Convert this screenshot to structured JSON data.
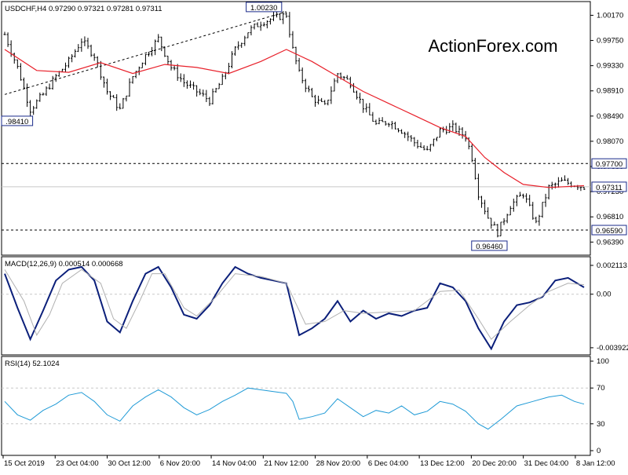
{
  "symbol_header": "USDCHF,H4  0.97290 0.97321 0.97281 0.97311",
  "watermark": "ActionForex.com",
  "colors": {
    "candle": "#000000",
    "ma": "#e8202a",
    "macd": "#0b1f7a",
    "signal": "#b0b0b0",
    "rsi": "#1f9ad6",
    "grid": "#c8c8c8"
  },
  "chart_data": [
    {
      "type": "candlestick",
      "title": "USDCHF,H4",
      "ohlc_last": [
        0.9729,
        0.97321,
        0.97281,
        0.97311
      ],
      "ylim": [
        0.9625,
        1.0032
      ],
      "y_ticks": [
        "1.00170",
        "0.99750",
        "0.99330",
        "0.98910",
        "0.98490",
        "0.98070",
        "0.97650",
        "0.97230",
        "0.96810",
        "0.96390"
      ],
      "y_tick_values": [
        1.0017,
        0.9975,
        0.9933,
        0.9891,
        0.9849,
        0.9807,
        0.9765,
        0.9723,
        0.9681,
        0.9639
      ],
      "x_categories": [
        "15 Oct 2019",
        "23 Oct 04:00",
        "30 Oct 12:00",
        "6 Nov 20:00",
        "14 Nov 04:00",
        "21 Nov 12:00",
        "28 Nov 20:00",
        "6 Dec 04:00",
        "13 Dec 12:00",
        "20 Dec 20:00",
        "31 Dec 04:00",
        "8 Jan 12:00"
      ],
      "close_path": [
        [
          0,
          0.9985
        ],
        [
          4,
          0.993
        ],
        [
          8,
          0.986
        ],
        [
          12,
          0.9885
        ],
        [
          16,
          0.9915
        ],
        [
          20,
          0.994
        ],
        [
          24,
          0.9975
        ],
        [
          28,
          0.995
        ],
        [
          32,
          0.989
        ],
        [
          36,
          0.986
        ],
        [
          40,
          0.9915
        ],
        [
          44,
          0.995
        ],
        [
          48,
          0.9978
        ],
        [
          52,
          0.993
        ],
        [
          56,
          0.9905
        ],
        [
          60,
          0.989
        ],
        [
          64,
          0.9875
        ],
        [
          68,
          0.991
        ],
        [
          72,
          0.996
        ],
        [
          76,
          0.999
        ],
        [
          80,
          1.0005
        ],
        [
          84,
          1.0012
        ],
        [
          88,
          1.0018
        ],
        [
          90,
          0.996
        ],
        [
          92,
          0.992
        ],
        [
          96,
          0.988
        ],
        [
          100,
          0.9865
        ],
        [
          104,
          0.992
        ],
        [
          108,
          0.9905
        ],
        [
          112,
          0.9865
        ],
        [
          116,
          0.9835
        ],
        [
          120,
          0.984
        ],
        [
          124,
          0.9825
        ],
        [
          128,
          0.9805
        ],
        [
          132,
          0.979
        ],
        [
          136,
          0.9825
        ],
        [
          140,
          0.983
        ],
        [
          144,
          0.9815
        ],
        [
          146,
          0.978
        ],
        [
          148,
          0.972
        ],
        [
          151,
          0.968
        ],
        [
          154,
          0.9655
        ],
        [
          158,
          0.97
        ],
        [
          162,
          0.972
        ],
        [
          166,
          0.967
        ],
        [
          170,
          0.973
        ],
        [
          174,
          0.974
        ],
        [
          178,
          0.9735
        ],
        [
          181,
          0.9731
        ]
      ],
      "ma_path": [
        [
          0,
          0.996
        ],
        [
          10,
          0.9925
        ],
        [
          20,
          0.9922
        ],
        [
          30,
          0.9938
        ],
        [
          40,
          0.992
        ],
        [
          50,
          0.9935
        ],
        [
          60,
          0.993
        ],
        [
          70,
          0.992
        ],
        [
          80,
          0.994
        ],
        [
          88,
          0.996
        ],
        [
          96,
          0.994
        ],
        [
          104,
          0.9915
        ],
        [
          112,
          0.989
        ],
        [
          120,
          0.987
        ],
        [
          128,
          0.985
        ],
        [
          136,
          0.983
        ],
        [
          144,
          0.9815
        ],
        [
          150,
          0.978
        ],
        [
          156,
          0.9755
        ],
        [
          162,
          0.9735
        ],
        [
          170,
          0.973
        ],
        [
          181,
          0.9733
        ]
      ],
      "levels": [
        {
          "label": "0.97700",
          "value": 0.977,
          "style": "dashed"
        },
        {
          "label": "0.96590",
          "value": 0.9659,
          "style": "dashed"
        },
        {
          "label": "0.97311",
          "value": 0.97311,
          "style": "solid"
        }
      ],
      "annotations": [
        {
          "label": "1.00230",
          "x": 88,
          "y": 1.0023
        },
        {
          "label": ".98410",
          "x": 6,
          "y": 0.9841
        },
        {
          "label": "0.96460",
          "x": 155,
          "y": 0.9646
        }
      ],
      "trendline": [
        [
          0,
          0.9885
        ],
        [
          88,
          1.0023
        ]
      ]
    },
    {
      "type": "line",
      "title": "MACD(12,26,9) 0.000514 0.000668",
      "ylim": [
        -0.0041,
        0.0024
      ],
      "y_ticks": [
        "0.002113",
        "0.00",
        "-0.003922"
      ],
      "y_tick_values": [
        0.002113,
        0.0,
        -0.003922
      ],
      "series": [
        {
          "name": "MACD",
          "points": [
            [
              0,
              0.0015
            ],
            [
              4,
              -0.001
            ],
            [
              8,
              -0.0033
            ],
            [
              12,
              -0.0012
            ],
            [
              16,
              0.001
            ],
            [
              20,
              0.0018
            ],
            [
              24,
              0.002
            ],
            [
              28,
              0.001
            ],
            [
              32,
              -0.002
            ],
            [
              36,
              -0.0028
            ],
            [
              40,
              -0.0005
            ],
            [
              44,
              0.0015
            ],
            [
              48,
              0.002
            ],
            [
              52,
              0.0005
            ],
            [
              56,
              -0.0015
            ],
            [
              60,
              -0.0018
            ],
            [
              64,
              -0.0008
            ],
            [
              68,
              0.0008
            ],
            [
              72,
              0.002
            ],
            [
              76,
              0.0015
            ],
            [
              80,
              0.0012
            ],
            [
              84,
              0.001
            ],
            [
              88,
              0.0008
            ],
            [
              92,
              -0.003
            ],
            [
              96,
              -0.0025
            ],
            [
              100,
              -0.0018
            ],
            [
              104,
              -0.0005
            ],
            [
              108,
              -0.002
            ],
            [
              112,
              -0.0012
            ],
            [
              116,
              -0.0018
            ],
            [
              120,
              -0.0014
            ],
            [
              124,
              -0.0016
            ],
            [
              128,
              -0.0012
            ],
            [
              132,
              -0.001
            ],
            [
              136,
              0.0008
            ],
            [
              140,
              0.0005
            ],
            [
              144,
              -0.0005
            ],
            [
              148,
              -0.0025
            ],
            [
              152,
              -0.004
            ],
            [
              156,
              -0.002
            ],
            [
              160,
              -0.0008
            ],
            [
              164,
              -0.0006
            ],
            [
              168,
              -0.0002
            ],
            [
              172,
              0.001
            ],
            [
              176,
              0.0012
            ],
            [
              181,
              0.0005
            ]
          ]
        },
        {
          "name": "Signal",
          "points": [
            [
              0,
              0.0018
            ],
            [
              6,
              -0.0005
            ],
            [
              10,
              -0.003
            ],
            [
              14,
              -0.0015
            ],
            [
              18,
              0.0008
            ],
            [
              24,
              0.0018
            ],
            [
              30,
              0.0008
            ],
            [
              34,
              -0.0018
            ],
            [
              38,
              -0.0025
            ],
            [
              42,
              -0.0006
            ],
            [
              46,
              0.0015
            ],
            [
              50,
              0.0015
            ],
            [
              56,
              -0.001
            ],
            [
              60,
              -0.0016
            ],
            [
              66,
              -0.0002
            ],
            [
              72,
              0.0015
            ],
            [
              80,
              0.0013
            ],
            [
              88,
              0.0008
            ],
            [
              94,
              -0.0022
            ],
            [
              100,
              -0.002
            ],
            [
              106,
              -0.0012
            ],
            [
              112,
              -0.0014
            ],
            [
              120,
              -0.0013
            ],
            [
              128,
              -0.0012
            ],
            [
              136,
              0.0002
            ],
            [
              142,
              0.0003
            ],
            [
              148,
              -0.0018
            ],
            [
              152,
              -0.0033
            ],
            [
              158,
              -0.002
            ],
            [
              164,
              -0.0008
            ],
            [
              170,
              0.0002
            ],
            [
              176,
              0.0008
            ],
            [
              181,
              0.0007
            ]
          ]
        }
      ]
    },
    {
      "type": "line",
      "title": "RSI(14) 52.1024",
      "ylim": [
        0,
        100
      ],
      "y_ticks": [
        "100",
        "70",
        "30",
        "0"
      ],
      "y_tick_values": [
        100,
        70,
        30,
        0
      ],
      "levels": [
        70,
        30
      ],
      "series": [
        {
          "name": "RSI",
          "points": [
            [
              0,
              55
            ],
            [
              4,
              40
            ],
            [
              8,
              34
            ],
            [
              12,
              45
            ],
            [
              16,
              52
            ],
            [
              20,
              62
            ],
            [
              24,
              65
            ],
            [
              28,
              55
            ],
            [
              32,
              40
            ],
            [
              36,
              33
            ],
            [
              40,
              50
            ],
            [
              44,
              60
            ],
            [
              48,
              68
            ],
            [
              52,
              60
            ],
            [
              56,
              48
            ],
            [
              60,
              40
            ],
            [
              64,
              46
            ],
            [
              68,
              55
            ],
            [
              72,
              62
            ],
            [
              76,
              70
            ],
            [
              80,
              68
            ],
            [
              84,
              66
            ],
            [
              88,
              64
            ],
            [
              90,
              55
            ],
            [
              92,
              35
            ],
            [
              96,
              38
            ],
            [
              100,
              42
            ],
            [
              104,
              58
            ],
            [
              108,
              48
            ],
            [
              112,
              38
            ],
            [
              116,
              45
            ],
            [
              120,
              42
            ],
            [
              124,
              50
            ],
            [
              128,
              40
            ],
            [
              132,
              44
            ],
            [
              136,
              55
            ],
            [
              140,
              52
            ],
            [
              144,
              44
            ],
            [
              148,
              30
            ],
            [
              151,
              24
            ],
            [
              155,
              35
            ],
            [
              160,
              50
            ],
            [
              165,
              55
            ],
            [
              170,
              60
            ],
            [
              174,
              62
            ],
            [
              178,
              55
            ],
            [
              181,
              52
            ]
          ]
        }
      ]
    }
  ]
}
